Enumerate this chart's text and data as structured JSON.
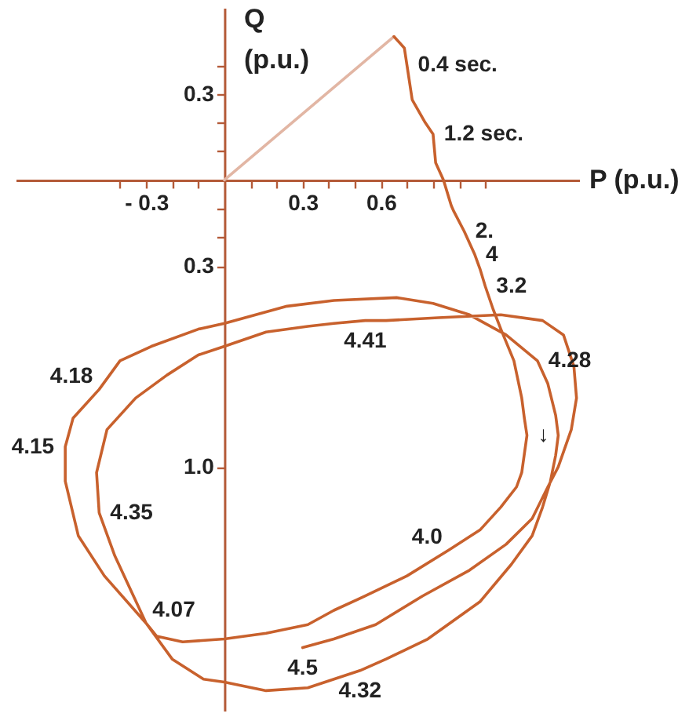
{
  "chart_data": {
    "type": "line",
    "xlabel": "P (p.u.)",
    "ylabel": "Q (p.u.)",
    "xlim": [
      -0.8,
      1.36
    ],
    "ylim": [
      -1.85,
      0.6
    ],
    "xticks": [
      {
        "value": -0.4,
        "label": null
      },
      {
        "value": -0.3,
        "label": "- 0.3"
      },
      {
        "value": -0.2,
        "label": null
      },
      {
        "value": -0.1,
        "label": null
      },
      {
        "value": 0.1,
        "label": null
      },
      {
        "value": 0.2,
        "label": null
      },
      0.3,
      {
        "value": 0.4,
        "label": null
      },
      {
        "value": 0.5,
        "label": null
      },
      0.6,
      {
        "value": 0.7,
        "label": null
      },
      {
        "value": 0.8,
        "label": null
      },
      {
        "value": 0.9,
        "label": null
      },
      {
        "value": 1,
        "label": null
      }
    ],
    "yticks": [
      {
        "value": 0.4,
        "label": null
      },
      0.3,
      {
        "value": 0.2,
        "label": null
      },
      {
        "value": 0.1,
        "label": null
      },
      {
        "value": -0.1,
        "label": null
      },
      {
        "value": -0.2,
        "label": null
      },
      {
        "value": -0.3,
        "label": "0.3"
      },
      {
        "value": -1,
        "label": "1.0"
      }
    ],
    "series": [
      {
        "color": "#e2b6a4",
        "x": [
          0,
          0.65
        ],
        "values": [
          0,
          0.5
        ]
      },
      {
        "color": "#c8612d",
        "x": [
          0.65,
          0.69,
          0.7,
          0.72,
          0.77,
          0.8,
          0.81,
          0.84,
          0.86,
          0.87,
          0.88,
          0.92,
          0.95,
          0.96,
          0.98,
          1.0,
          1.03,
          1.06,
          1.11,
          1.14,
          1.15,
          1.16,
          1.14,
          1.12,
          1.06,
          0.98,
          0.86,
          0.7,
          0.54,
          0.42,
          0.32,
          0.16,
          0.0,
          -0.16,
          -0.26,
          -0.3,
          -0.46,
          -0.56,
          -0.61,
          -0.61,
          -0.58,
          -0.48,
          -0.4,
          -0.28,
          -0.1,
          0.0,
          0.12,
          0.24,
          0.42,
          0.66,
          0.8,
          0.94,
          1.08,
          1.2,
          1.24,
          1.27,
          1.28,
          1.27,
          1.25,
          1.22,
          1.18,
          1.1,
          0.98,
          0.78,
          0.62,
          0.52,
          0.42,
          0.32,
          0.16,
          0.0,
          -0.08,
          -0.2,
          -0.3,
          -0.42,
          -0.48,
          -0.49,
          -0.45,
          -0.34,
          -0.22,
          -0.1,
          0.0,
          0.16,
          0.32,
          0.42,
          0.54,
          0.62,
          0.82,
          1.06,
          1.22,
          1.3,
          1.34,
          1.35,
          1.33,
          1.28,
          1.24,
          1.18,
          1.08,
          0.94,
          0.76,
          0.58,
          0.42,
          0.3
        ],
        "values": [
          0.5,
          0.46,
          0.4,
          0.28,
          0.2,
          0.16,
          0.06,
          0.0,
          -0.06,
          -0.09,
          -0.11,
          -0.18,
          -0.24,
          -0.26,
          -0.31,
          -0.37,
          -0.45,
          -0.52,
          -0.63,
          -0.76,
          -0.83,
          -0.89,
          -1.02,
          -1.07,
          -1.14,
          -1.22,
          -1.29,
          -1.38,
          -1.45,
          -1.5,
          -1.55,
          -1.58,
          -1.6,
          -1.61,
          -1.59,
          -1.545,
          -1.38,
          -1.24,
          -1.05,
          -0.93,
          -0.83,
          -0.73,
          -0.63,
          -0.58,
          -0.52,
          -0.5,
          -0.47,
          -0.44,
          -0.42,
          -0.41,
          -0.43,
          -0.47,
          -0.54,
          -0.63,
          -0.71,
          -0.82,
          -0.89,
          -0.96,
          -1.05,
          -1.14,
          -1.24,
          -1.34,
          -1.47,
          -1.6,
          -1.67,
          -1.71,
          -1.74,
          -1.77,
          -1.78,
          -1.75,
          -1.74,
          -1.67,
          -1.545,
          -1.31,
          -1.16,
          -1.02,
          -0.87,
          -0.76,
          -0.68,
          -0.61,
          -0.58,
          -0.53,
          -0.51,
          -0.5,
          -0.49,
          -0.49,
          -0.48,
          -0.47,
          -0.49,
          -0.54,
          -0.65,
          -0.76,
          -0.87,
          -1.0,
          -1.07,
          -1.18,
          -1.27,
          -1.36,
          -1.45,
          -1.55,
          -1.6,
          -1.63
        ]
      }
    ],
    "annotations": [
      {
        "text": "0.4 sec.",
        "x": 0.7,
        "y": 0.4
      },
      {
        "text": "1.2 sec.",
        "x": 0.8,
        "y": 0.16
      },
      {
        "text": "2.",
        "x": 0.92,
        "y": -0.18
      },
      {
        "text": "4",
        "x": 0.96,
        "y": -0.26
      },
      {
        "text": "3.2",
        "x": 1.0,
        "y": -0.37
      },
      {
        "text": "4.41",
        "x": 0.54,
        "y": -0.49
      },
      {
        "text": "4.28",
        "x": 1.2,
        "y": -0.63
      },
      {
        "text": "4.18",
        "x": -0.48,
        "y": -0.73
      },
      {
        "text": "4.15",
        "x": -0.61,
        "y": -0.93
      },
      {
        "text": "4.35",
        "x": -0.48,
        "y": -1.16
      },
      {
        "text": "4.0",
        "x": 0.86,
        "y": -1.29
      },
      {
        "text": "4.07",
        "x": -0.3,
        "y": -1.545
      },
      {
        "text": "4.5",
        "x": 0.3,
        "y": -1.63
      },
      {
        "text": "4.32",
        "x": 0.52,
        "y": -1.71
      },
      {
        "text": "↓",
        "x": 1.16,
        "y": -0.89
      }
    ]
  }
}
